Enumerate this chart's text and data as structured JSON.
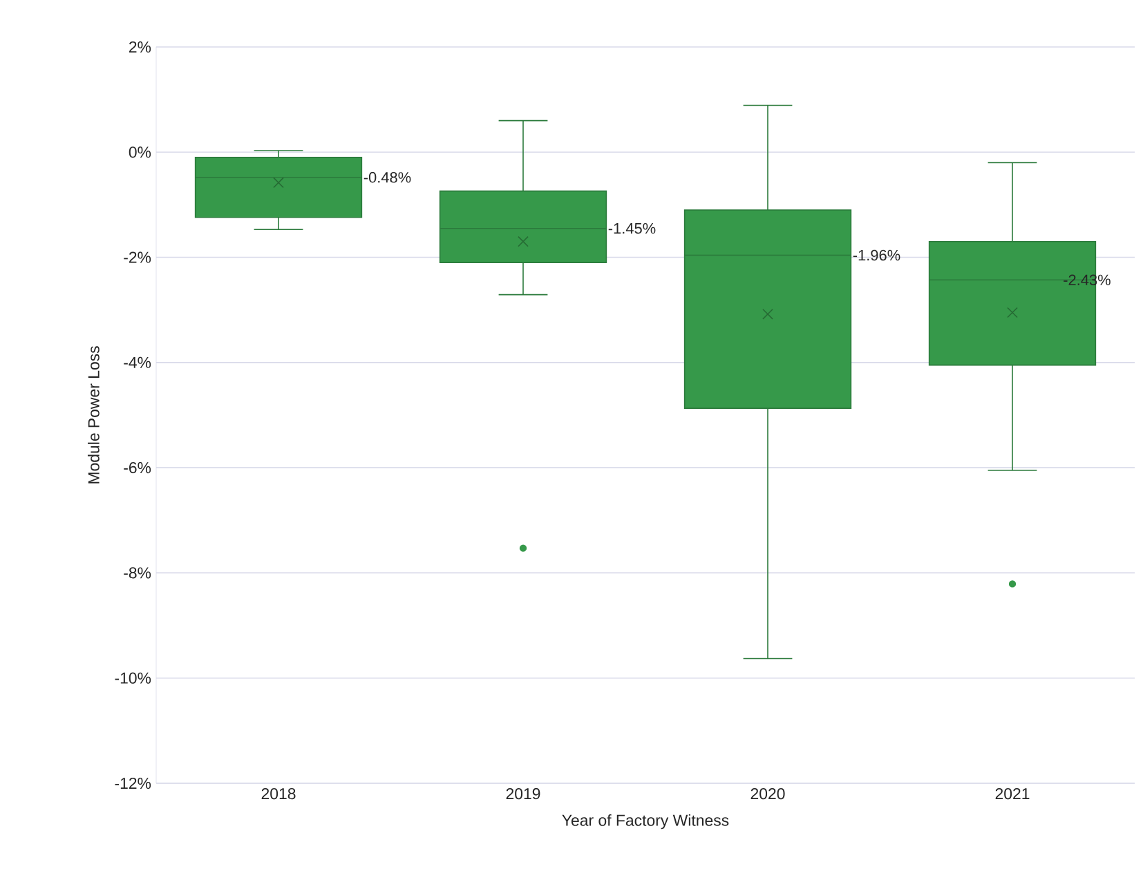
{
  "chart_data": {
    "type": "box",
    "xlabel": "Year of Factory Witness",
    "ylabel": "Module Power Loss",
    "categories": [
      "2018",
      "2019",
      "2020",
      "2021"
    ],
    "color": "#36994a",
    "boxes": [
      {
        "low": -1.47,
        "q1": -1.24,
        "median": -0.48,
        "q3": -0.1,
        "high": 0.03,
        "mean": -0.58
      },
      {
        "low": -2.71,
        "q1": -2.1,
        "median": -1.45,
        "q3": -0.74,
        "high": 0.6,
        "mean": -1.7,
        "outliers": [
          -7.53
        ]
      },
      {
        "low": -9.63,
        "q1": -4.87,
        "median": -1.96,
        "q3": -1.1,
        "high": 0.89,
        "mean": -3.08
      },
      {
        "low": -6.05,
        "q1": -4.05,
        "median": -2.43,
        "q3": -1.7,
        "high": -0.2,
        "mean": -3.05,
        "outliers": [
          -8.21
        ]
      }
    ],
    "ylim": [
      -12,
      2
    ],
    "yticks": [
      {
        "value": -12,
        "label": "-12%"
      },
      {
        "value": -10,
        "label": "-10%"
      },
      {
        "value": -8,
        "label": "-8%"
      },
      {
        "value": -6,
        "label": "-6%"
      },
      {
        "value": -4,
        "label": "-4%"
      },
      {
        "value": -2,
        "label": "-2%"
      },
      {
        "value": 0,
        "label": "0%"
      },
      {
        "value": 2,
        "label": "2%"
      }
    ],
    "grid": "y",
    "marker": "cross",
    "annotations": [
      "-0.48%",
      "-1.45%",
      "-1.96%",
      "-2.43%"
    ]
  }
}
